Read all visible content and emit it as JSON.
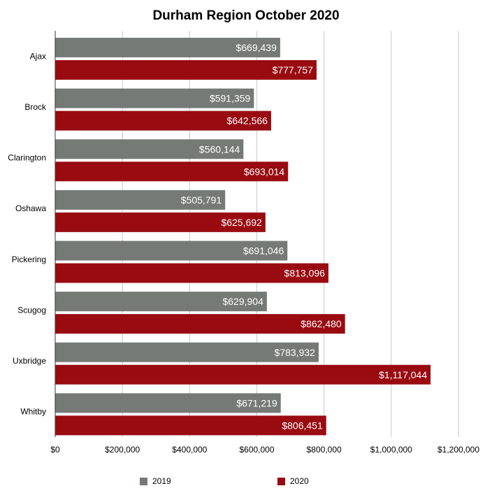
{
  "chart_data": {
    "type": "bar",
    "orientation": "horizontal",
    "title": "Durham Region October 2020",
    "categories": [
      "Ajax",
      "Brock",
      "Clarington",
      "Oshawa",
      "Pickering",
      "Scugog",
      "Uxbridge",
      "Whitby"
    ],
    "series": [
      {
        "name": "2019",
        "color": "#757a77",
        "values": [
          669439,
          591359,
          560144,
          505791,
          691046,
          629904,
          783932,
          671219
        ],
        "labels": [
          "$669,439",
          "$591,359",
          "$560,144",
          "$505,791",
          "$691,046",
          "$629,904",
          "$783,932",
          "$671,219"
        ]
      },
      {
        "name": "2020",
        "color": "#990b11",
        "values": [
          777757,
          642566,
          693014,
          625692,
          813096,
          862480,
          1117044,
          806451
        ],
        "labels": [
          "$777,757",
          "$642,566",
          "$693,014",
          "$625,692",
          "$813,096",
          "$862,480",
          "$1,117,044",
          "$806,451"
        ]
      }
    ],
    "xlim": [
      0,
      1200000
    ],
    "x_ticks": [
      0,
      200000,
      400000,
      600000,
      800000,
      1000000,
      1200000
    ],
    "x_tick_labels": [
      "$0",
      "$200,000",
      "$400,000",
      "$600,000",
      "$800,000",
      "$1,000,000",
      "$1,200,000"
    ],
    "grid": true,
    "legend_position": "bottom"
  }
}
